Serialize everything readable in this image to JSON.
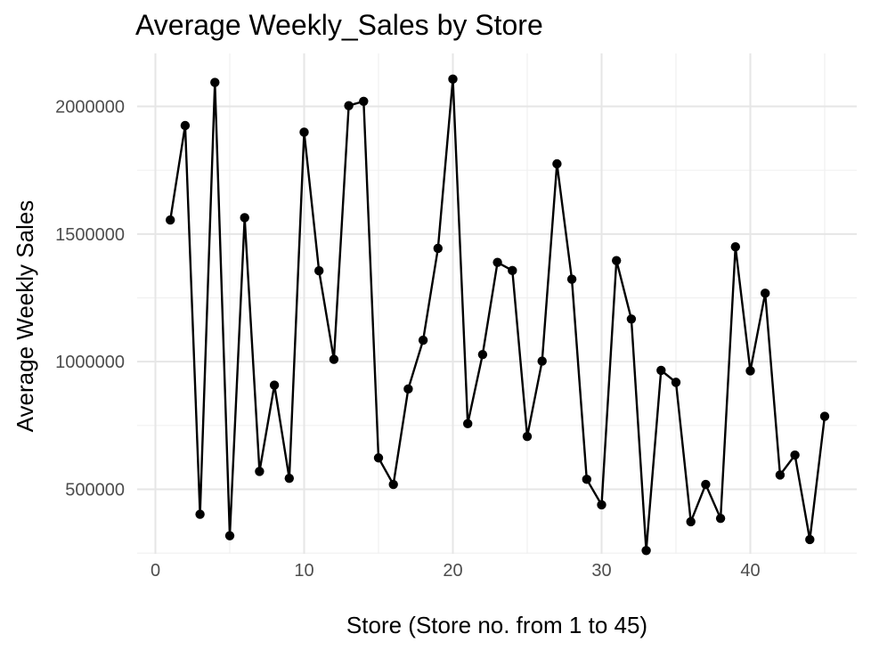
{
  "chart_data": {
    "type": "line",
    "title": "Average Weekly_Sales by Store",
    "xlabel": "Store (Store no. from 1 to 45)",
    "ylabel": "Average Weekly Sales",
    "xlim": [
      0,
      45
    ],
    "ylim": [
      260000,
      2110000
    ],
    "xticks": [
      0,
      10,
      20,
      30,
      40
    ],
    "yticks": [
      500000,
      1000000,
      1500000,
      2000000
    ],
    "xtick_labels": [
      "0",
      "10",
      "20",
      "30",
      "40"
    ],
    "ytick_labels": [
      "500000",
      "1000000",
      "1500000",
      "2000000"
    ],
    "grid": true,
    "markers": true,
    "line_color": "#000000",
    "x": [
      1,
      2,
      3,
      4,
      5,
      6,
      7,
      8,
      9,
      10,
      11,
      12,
      13,
      14,
      15,
      16,
      17,
      18,
      19,
      20,
      21,
      22,
      23,
      24,
      25,
      26,
      27,
      28,
      29,
      30,
      31,
      32,
      33,
      34,
      35,
      36,
      37,
      38,
      39,
      40,
      41,
      42,
      43,
      44,
      45
    ],
    "y": [
      1555000,
      1925000,
      402000,
      2094000,
      318000,
      1564000,
      570000,
      908000,
      543000,
      1899000,
      1356000,
      1009000,
      2003000,
      2020000,
      623000,
      519000,
      893000,
      1084000,
      1444000,
      2107000,
      757000,
      1028000,
      1389000,
      1357000,
      707000,
      1002000,
      1775000,
      1323000,
      539000,
      439000,
      1396000,
      1167000,
      260000,
      966000,
      919000,
      373000,
      519000,
      386000,
      1450000,
      964000,
      1268000,
      556000,
      634000,
      303000,
      786000
    ]
  }
}
